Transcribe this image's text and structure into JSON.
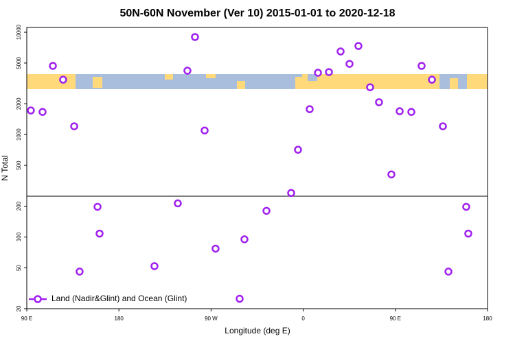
{
  "chart_data": [
    {
      "type": "scatter",
      "title": "50N-60N November (Ver 10)   2015-01-01 to 2020-12-18",
      "ylabel": "N Total",
      "log_y": true,
      "xlim": [
        90,
        540
      ],
      "ylim": [
        250,
        11140
      ],
      "yticks": [
        500,
        1000,
        2000,
        5000,
        10000
      ],
      "series": [
        {
          "color": "#a020f0",
          "x": [
            94.0,
            105.4,
            115.5,
            125.5,
            136.3,
            246.9,
            254.3,
            263.7,
            348.2,
            354.9,
            366.3,
            374.4,
            385.1,
            396.5,
            405.2,
            413.9,
            425.3,
            434.0,
            446.1,
            454.2,
            465.6,
            475.6,
            485.7,
            496.4
          ],
          "values": [
            1720,
            1665,
            4690,
            3440,
            1205,
            4210,
            8980,
            1096,
            269,
            711,
            1770,
            4020,
            4080,
            6490,
            4910,
            7340,
            2900,
            2070,
            408,
            1690,
            1665,
            4690,
            3440,
            1205
          ]
        }
      ]
    },
    {
      "type": "scatter",
      "xlabel": "Longitude (deg E)",
      "log_y": true,
      "legend": "lower left",
      "xlim": [
        90,
        540
      ],
      "ylim": [
        20,
        250
      ],
      "xticks": [
        {
          "value": 90,
          "label": "90 E"
        },
        180,
        {
          "value": 270,
          "label": "90 W"
        },
        {
          "value": 360,
          "label": "0"
        },
        {
          "value": 450,
          "label": "90 E"
        },
        {
          "value": 540,
          "label": "180"
        }
      ],
      "yticks": [
        20,
        50,
        100,
        200
      ],
      "series": [
        {
          "name": "Land (Nadir&Glint) and Ocean (Glint)",
          "color": "#a020f0",
          "x": [
            141.6,
            159.1,
            161.1,
            214.7,
            237.5,
            274.4,
            297.9,
            302.6,
            324.1,
            501.8,
            519.2,
            521.2
          ],
          "values": [
            46,
            197,
            108,
            52,
            213,
            77,
            25,
            95,
            180,
            46,
            197,
            108
          ]
        }
      ]
    }
  ]
}
